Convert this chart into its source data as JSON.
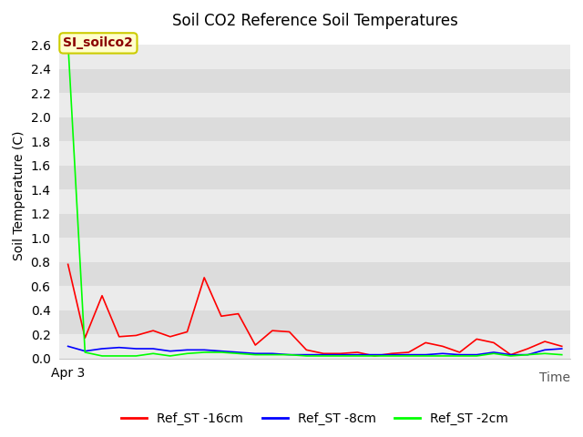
{
  "title": "Soil CO2 Reference Soil Temperatures",
  "ylabel": "Soil Temperature (C)",
  "xlabel": "Time",
  "annotation_label": "SI_soilco2",
  "annotation_color": "#8B0000",
  "annotation_bg": "#FFFFCC",
  "annotation_edge": "#CCCC00",
  "x_tick_label": "Apr 3",
  "ylim": [
    0.0,
    2.7
  ],
  "yticks": [
    0.0,
    0.2,
    0.4,
    0.6,
    0.8,
    1.0,
    1.2,
    1.4,
    1.6,
    1.8,
    2.0,
    2.2,
    2.4,
    2.6
  ],
  "fig_bg": "#FFFFFF",
  "plot_bg": "#FFFFFF",
  "band_color_light": "#EBEBEB",
  "band_color_dark": "#DCDCDC",
  "title_fontsize": 12,
  "axis_fontsize": 10,
  "tick_fontsize": 10,
  "series_order": [
    "Ref_ST -16cm",
    "Ref_ST -8cm",
    "Ref_ST -2cm"
  ],
  "series": {
    "Ref_ST -16cm": {
      "color": "#FF0000",
      "values": [
        0.78,
        0.17,
        0.52,
        0.18,
        0.19,
        0.23,
        0.18,
        0.22,
        0.67,
        0.35,
        0.37,
        0.11,
        0.23,
        0.22,
        0.07,
        0.04,
        0.04,
        0.05,
        0.02,
        0.04,
        0.05,
        0.13,
        0.1,
        0.05,
        0.16,
        0.13,
        0.03,
        0.08,
        0.14,
        0.1
      ]
    },
    "Ref_ST -8cm": {
      "color": "#0000FF",
      "values": [
        0.1,
        0.06,
        0.08,
        0.09,
        0.08,
        0.08,
        0.06,
        0.07,
        0.07,
        0.06,
        0.05,
        0.04,
        0.04,
        0.03,
        0.03,
        0.03,
        0.03,
        0.03,
        0.03,
        0.03,
        0.03,
        0.03,
        0.04,
        0.03,
        0.03,
        0.05,
        0.03,
        0.03,
        0.07,
        0.08
      ]
    },
    "Ref_ST -2cm": {
      "color": "#00FF00",
      "values": [
        2.62,
        0.05,
        0.02,
        0.02,
        0.02,
        0.04,
        0.02,
        0.04,
        0.05,
        0.05,
        0.04,
        0.03,
        0.03,
        0.03,
        0.02,
        0.02,
        0.02,
        0.02,
        0.02,
        0.02,
        0.02,
        0.02,
        0.02,
        0.02,
        0.02,
        0.04,
        0.02,
        0.03,
        0.04,
        0.03
      ]
    }
  }
}
